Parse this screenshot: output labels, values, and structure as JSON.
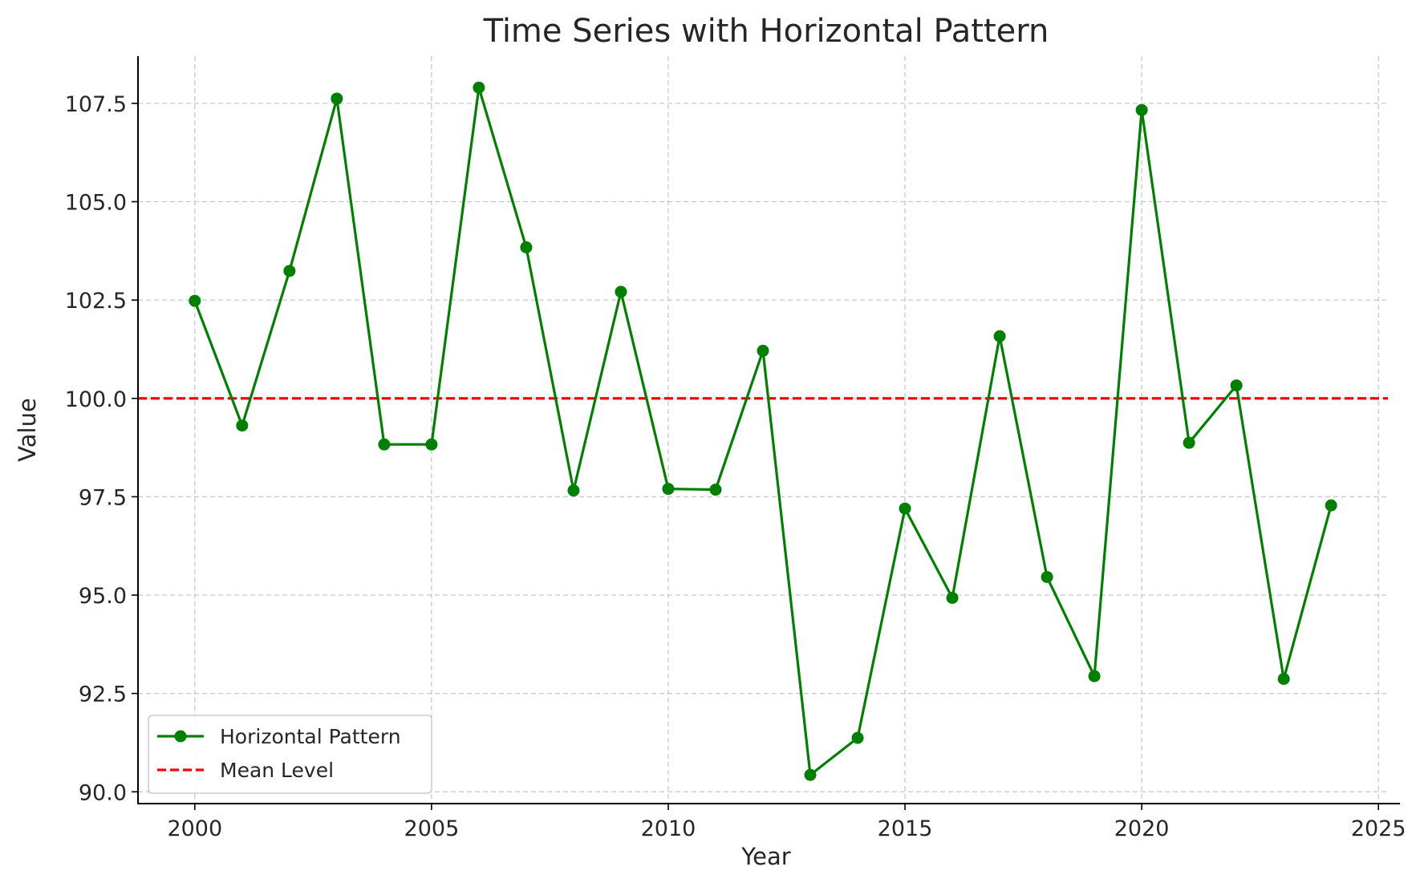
{
  "chart_data": {
    "type": "line",
    "title": "Time Series with Horizontal Pattern",
    "xlabel": "Year",
    "ylabel": "Value",
    "xlim": [
      1998.8,
      2025.2
    ],
    "ylim": [
      89.7,
      108.7
    ],
    "x_ticks": [
      2000,
      2005,
      2010,
      2015,
      2020,
      2025
    ],
    "y_ticks": [
      90.0,
      92.5,
      95.0,
      97.5,
      100.0,
      102.5,
      105.0,
      107.5
    ],
    "y_tick_labels": [
      "90.0",
      "92.5",
      "95.0",
      "97.5",
      "100.0",
      "102.5",
      "105.0",
      "107.5"
    ],
    "x_tick_labels": [
      "2000",
      "2005",
      "2010",
      "2015",
      "2020",
      "2025"
    ],
    "grid": true,
    "legend_position": "lower-left",
    "series": [
      {
        "name": "Horizontal Pattern",
        "color": "#008000",
        "style": "solid-with-markers",
        "x": [
          2000,
          2001,
          2002,
          2003,
          2004,
          2005,
          2006,
          2007,
          2008,
          2009,
          2010,
          2011,
          2012,
          2013,
          2014,
          2015,
          2016,
          2017,
          2018,
          2019,
          2020,
          2021,
          2022,
          2023,
          2024
        ],
        "y": [
          102.48,
          99.31,
          103.24,
          107.62,
          98.83,
          98.83,
          107.9,
          103.84,
          97.66,
          102.71,
          97.7,
          97.68,
          101.21,
          90.43,
          91.37,
          97.2,
          94.93,
          101.58,
          95.46,
          92.94,
          107.33,
          98.87,
          100.33,
          92.87,
          97.28
        ]
      },
      {
        "name": "Mean Level",
        "color": "#ff0000",
        "style": "dashed",
        "y_constant": 100.0
      }
    ]
  }
}
